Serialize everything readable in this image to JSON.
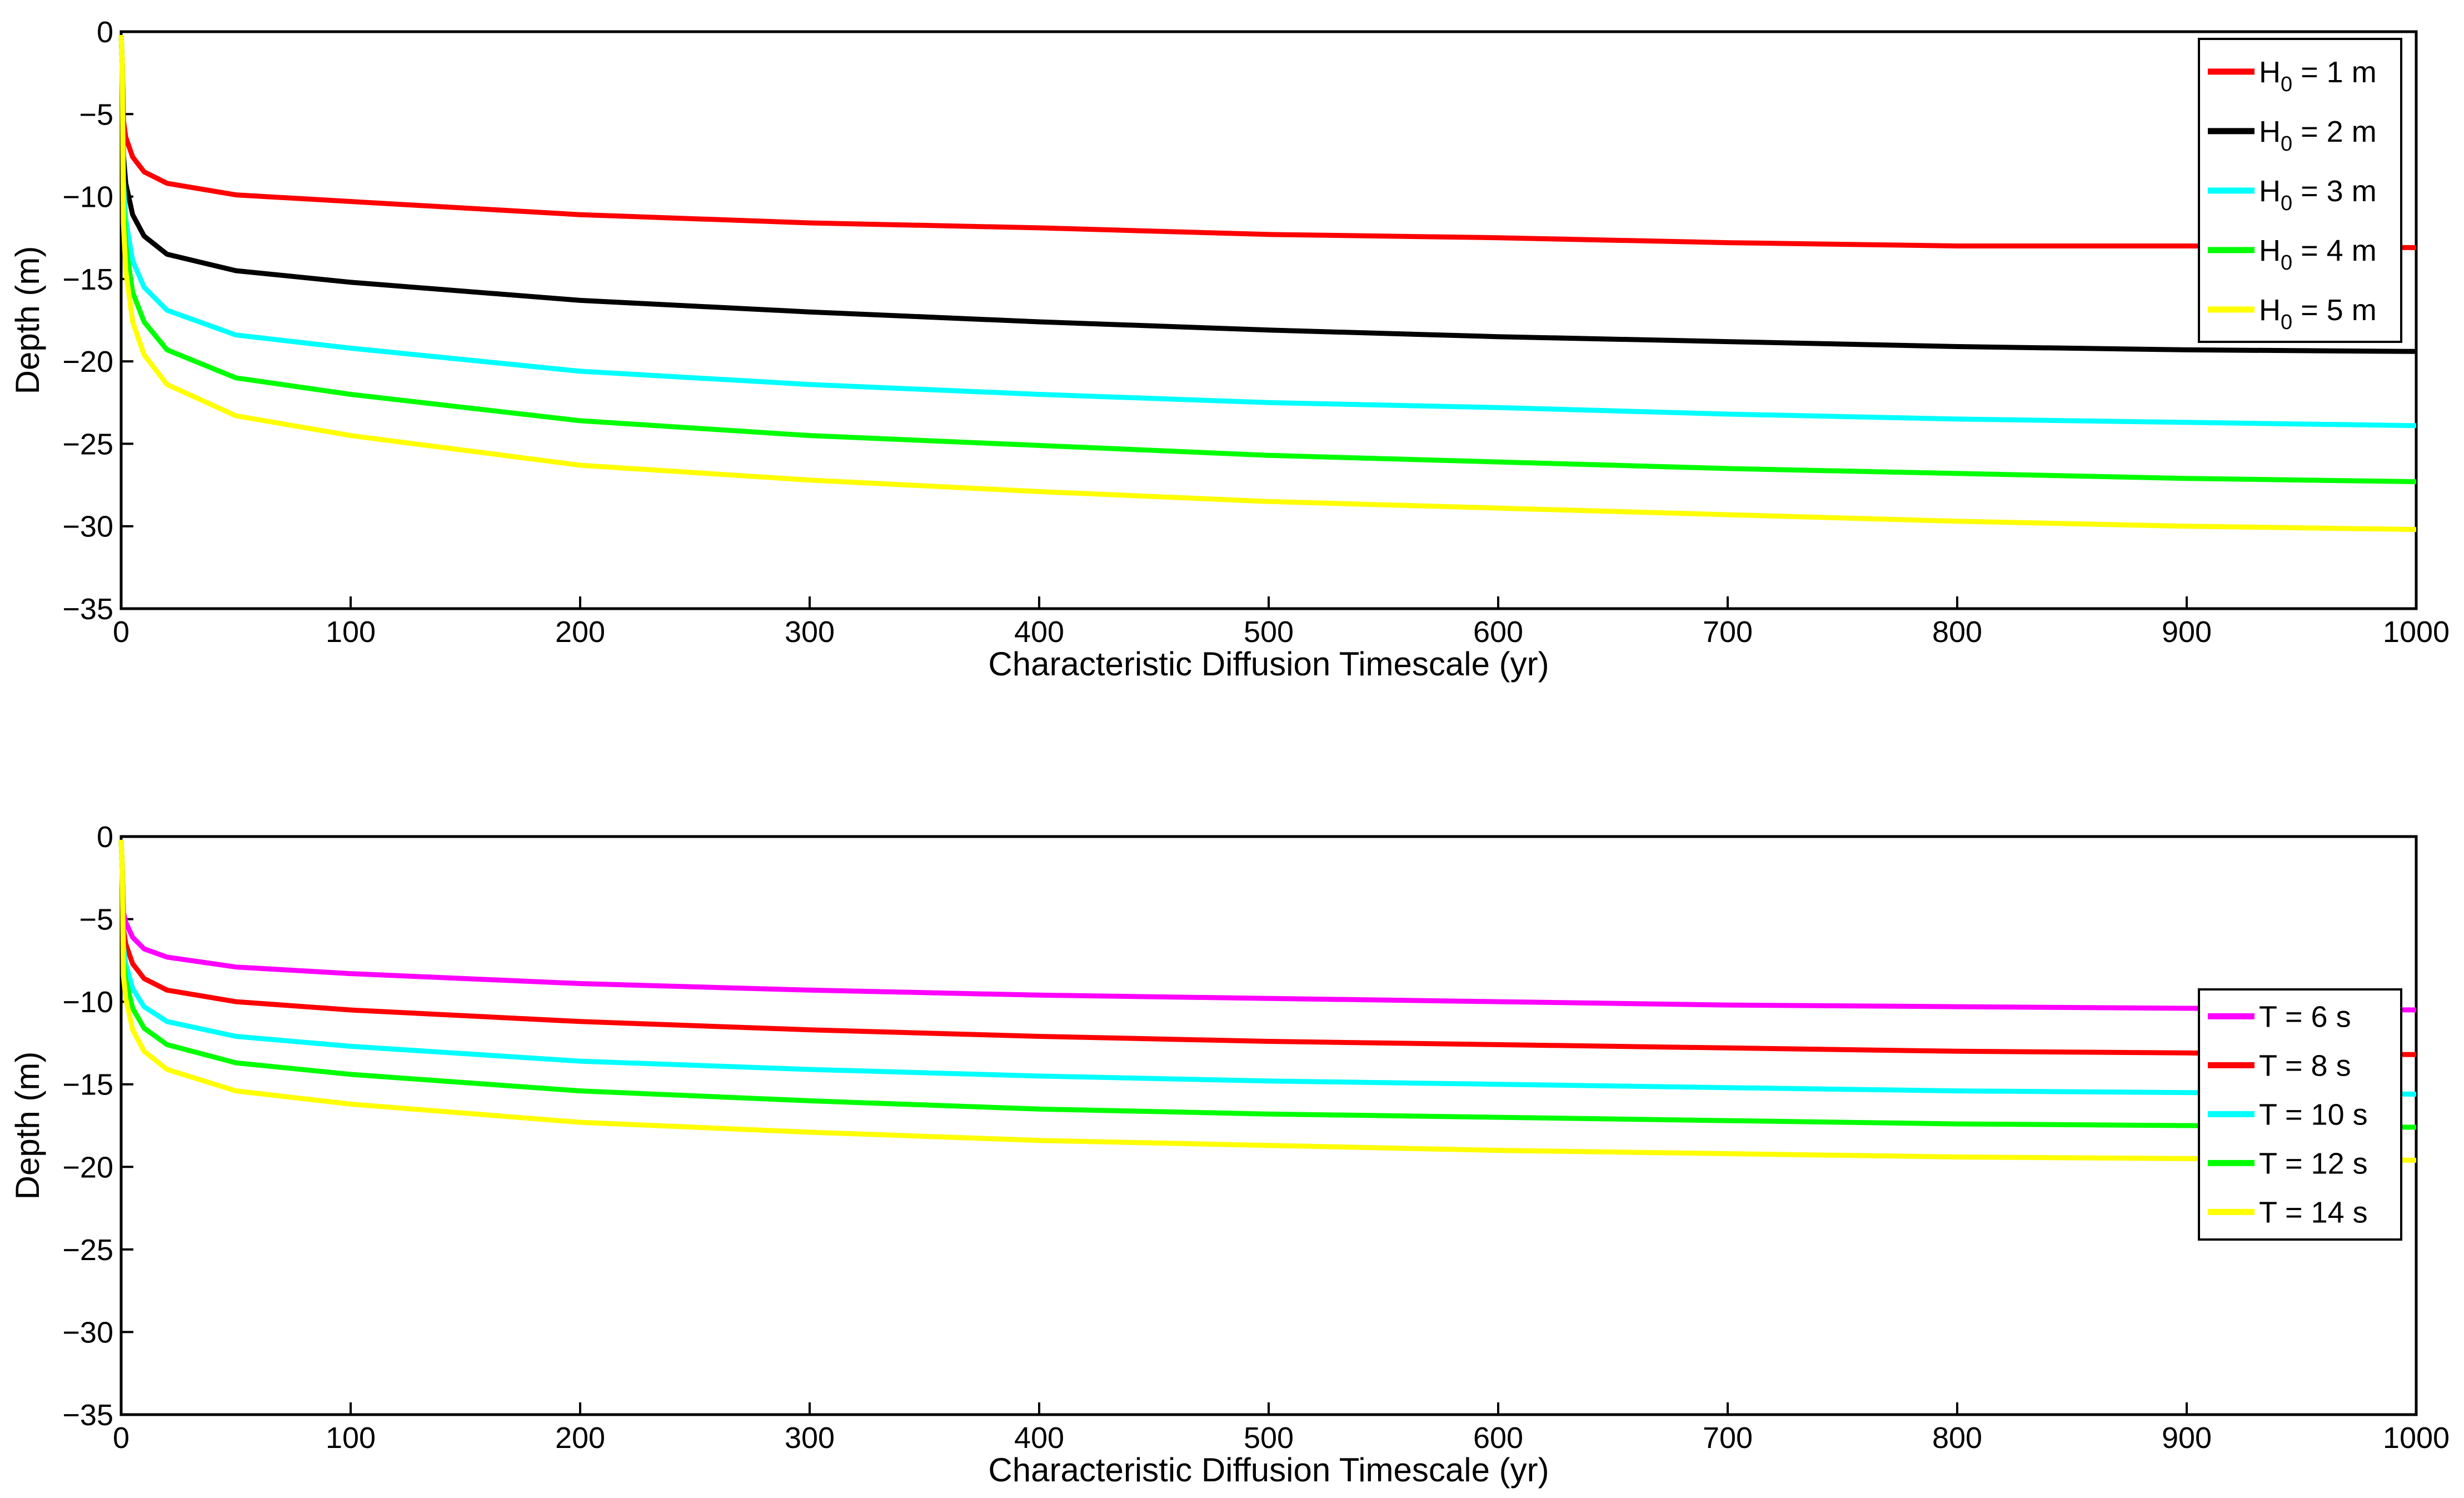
{
  "chart_data": [
    {
      "type": "line",
      "xlabel": "Characteristic Diffusion Timescale (yr)",
      "ylabel": "Depth (m)",
      "xlim": [
        0,
        1000
      ],
      "ylim": [
        -35,
        0
      ],
      "xticks": [
        0,
        100,
        200,
        300,
        400,
        500,
        600,
        700,
        800,
        900,
        1000
      ],
      "yticks": [
        0,
        -5,
        -10,
        -15,
        -20,
        -25,
        -30,
        -35
      ],
      "grid": false,
      "legend_position": "top-right",
      "x": [
        0.5,
        1,
        2,
        5,
        10,
        20,
        50,
        100,
        200,
        300,
        400,
        500,
        600,
        700,
        800,
        900,
        1000
      ],
      "series": [
        {
          "name": "H0 = 1 m",
          "legend_main": "H",
          "legend_sub": "0",
          "legend_rest": " = 1 m",
          "color": "#ff0000",
          "values": [
            -2.0,
            -5.4,
            -6.4,
            -7.6,
            -8.5,
            -9.2,
            -9.9,
            -10.3,
            -11.1,
            -11.6,
            -11.9,
            -12.3,
            -12.5,
            -12.8,
            -13.0,
            -13.0,
            -13.1
          ]
        },
        {
          "name": "H0 = 2 m",
          "legend_main": "H",
          "legend_sub": "0",
          "legend_rest": " = 2 m",
          "color": "#000000",
          "values": [
            -2.0,
            -7.5,
            -9.2,
            -11.1,
            -12.4,
            -13.5,
            -14.5,
            -15.2,
            -16.3,
            -17.0,
            -17.6,
            -18.1,
            -18.5,
            -18.8,
            -19.1,
            -19.3,
            -19.4
          ]
        },
        {
          "name": "H0 = 3 m",
          "legend_main": "H",
          "legend_sub": "0",
          "legend_rest": " = 3 m",
          "color": "#00ffff",
          "values": [
            -2.0,
            -9.0,
            -11.4,
            -13.9,
            -15.5,
            -16.9,
            -18.4,
            -19.2,
            -20.6,
            -21.4,
            -22.0,
            -22.5,
            -22.8,
            -23.2,
            -23.5,
            -23.7,
            -23.9
          ]
        },
        {
          "name": "H0 = 4 m",
          "legend_main": "H",
          "legend_sub": "0",
          "legend_rest": " = 4 m",
          "color": "#00ff00",
          "values": [
            -2.0,
            -10.4,
            -13.0,
            -15.8,
            -17.6,
            -19.3,
            -21.0,
            -22.0,
            -23.6,
            -24.5,
            -25.1,
            -25.7,
            -26.1,
            -26.5,
            -26.8,
            -27.1,
            -27.3
          ]
        },
        {
          "name": "H0 = 5 m",
          "legend_main": "H",
          "legend_sub": "0",
          "legend_rest": " = 5 m",
          "color": "#ffff00",
          "values": [
            -2.0,
            -11.6,
            -14.5,
            -17.6,
            -19.6,
            -21.4,
            -23.3,
            -24.5,
            -26.3,
            -27.2,
            -27.9,
            -28.5,
            -28.9,
            -29.3,
            -29.7,
            -30.0,
            -30.2
          ]
        }
      ]
    },
    {
      "type": "line",
      "xlabel": "Characteristic Diffusion Timescale (yr)",
      "ylabel": "Depth (m)",
      "xlim": [
        0,
        1000
      ],
      "ylim": [
        -35,
        0
      ],
      "xticks": [
        0,
        100,
        200,
        300,
        400,
        500,
        600,
        700,
        800,
        900,
        1000
      ],
      "yticks": [
        0,
        -5,
        -10,
        -15,
        -20,
        -25,
        -30,
        -35
      ],
      "grid": false,
      "legend_position": "right",
      "x": [
        0.5,
        1,
        2,
        5,
        10,
        20,
        50,
        100,
        200,
        300,
        400,
        500,
        600,
        700,
        800,
        900,
        1000
      ],
      "series": [
        {
          "name": "T = 6 s",
          "legend_main": "T = 6 s",
          "legend_sub": "",
          "legend_rest": "",
          "color": "#ff00ff",
          "values": [
            -2.0,
            -4.6,
            -5.2,
            -6.1,
            -6.8,
            -7.3,
            -7.9,
            -8.3,
            -8.9,
            -9.3,
            -9.6,
            -9.8,
            -10.0,
            -10.2,
            -10.3,
            -10.4,
            -10.5
          ]
        },
        {
          "name": "T = 8 s",
          "legend_main": "T = 8 s",
          "legend_sub": "",
          "legend_rest": "",
          "color": "#ff0000",
          "values": [
            -2.0,
            -5.6,
            -6.5,
            -7.7,
            -8.6,
            -9.3,
            -10.0,
            -10.5,
            -11.2,
            -11.7,
            -12.1,
            -12.4,
            -12.6,
            -12.8,
            -13.0,
            -13.1,
            -13.2
          ]
        },
        {
          "name": "T = 10 s",
          "legend_main": "T = 10 s",
          "legend_sub": "",
          "legend_rest": "",
          "color": "#00ffff",
          "values": [
            -2.0,
            -6.6,
            -7.7,
            -9.2,
            -10.3,
            -11.2,
            -12.1,
            -12.7,
            -13.6,
            -14.1,
            -14.5,
            -14.8,
            -15.0,
            -15.2,
            -15.4,
            -15.5,
            -15.6
          ]
        },
        {
          "name": "T = 12 s",
          "legend_main": "T = 12 s",
          "legend_sub": "",
          "legend_rest": "",
          "color": "#00ff00",
          "values": [
            -2.0,
            -7.5,
            -8.7,
            -10.4,
            -11.6,
            -12.6,
            -13.7,
            -14.4,
            -15.4,
            -16.0,
            -16.5,
            -16.8,
            -17.0,
            -17.2,
            -17.4,
            -17.5,
            -17.6
          ]
        },
        {
          "name": "T = 14 s",
          "legend_main": "T = 14 s",
          "legend_sub": "",
          "legend_rest": "",
          "color": "#ffff00",
          "values": [
            -2.0,
            -8.4,
            -9.8,
            -11.7,
            -13.0,
            -14.1,
            -15.4,
            -16.2,
            -17.3,
            -17.9,
            -18.4,
            -18.7,
            -19.0,
            -19.2,
            -19.4,
            -19.5,
            -19.6
          ]
        }
      ]
    }
  ]
}
